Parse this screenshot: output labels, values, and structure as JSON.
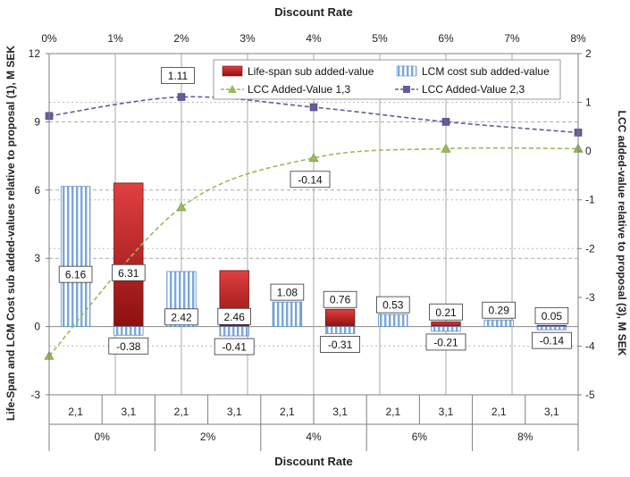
{
  "chart_data": {
    "type": "bar",
    "title": "",
    "top_axis_title": "Discount Rate",
    "bottom_axis_title": "Discount Rate",
    "ylabel_left": "Life-Span and LCM Cost  sub added-values relative to proposal (1), M SEK",
    "ylabel_right": "LCC added-value relative to proposal (3), M SEK",
    "ylim_left": [
      -3,
      12
    ],
    "yticks_left": [
      -3,
      0,
      3,
      6,
      9,
      12
    ],
    "ylim_right": [
      -5,
      2
    ],
    "yticks_right": [
      -5,
      -4,
      -3,
      -2,
      -1,
      0,
      1,
      2
    ],
    "top_axis_ticks": [
      "0%",
      "1%",
      "2%",
      "3%",
      "4%",
      "5%",
      "6%",
      "7%",
      "8%"
    ],
    "top_axis_range": [
      0,
      8
    ],
    "groups": [
      "0%",
      "2%",
      "4%",
      "6%",
      "8%"
    ],
    "subcategories": [
      "2,1",
      "3,1",
      "2,1",
      "3,1",
      "2,1",
      "3,1",
      "2,1",
      "3,1",
      "2,1",
      "3,1"
    ],
    "grid": true,
    "legend_position": "top-center",
    "bar_series": [
      {
        "name": "Life-span sub added-value",
        "color": "#cc2222",
        "slots": [
          1,
          3,
          5,
          7,
          9
        ],
        "values": [
          6.31,
          2.46,
          0.76,
          0.21,
          0.05
        ],
        "labels": [
          "6.31",
          "2.46",
          "0.76",
          "0.21",
          "0.05"
        ]
      },
      {
        "name": "LCM cost sub added-value",
        "color": "#6f9fd8",
        "slots": [
          0,
          2,
          4,
          6,
          8,
          1,
          3,
          5,
          7,
          9
        ],
        "values": [
          6.16,
          2.42,
          1.08,
          0.53,
          0.29,
          -0.38,
          -0.41,
          -0.31,
          -0.21,
          -0.14
        ],
        "labels": [
          "6.16",
          "2.42",
          "1.08",
          "0.53",
          "0.29",
          "-0.38",
          "-0.41",
          "-0.31",
          "-0.21",
          "-0.14"
        ]
      }
    ],
    "line_series": [
      {
        "name": "LCC Added-Value 1,3",
        "color": "#9bbb59",
        "marker": "triangle",
        "x": [
          0,
          2,
          4,
          6,
          8
        ],
        "y": [
          -4.2,
          -1.15,
          -0.14,
          0.05,
          0.05
        ],
        "point_labels": [
          "",
          "",
          "-0.14",
          "",
          ""
        ]
      },
      {
        "name": "LCC Added-Value 2,3",
        "color": "#6a5a9a",
        "marker": "square",
        "x": [
          0,
          2,
          4,
          6,
          8
        ],
        "y": [
          0.72,
          1.11,
          0.9,
          0.6,
          0.38
        ],
        "point_labels": [
          "",
          "1.11",
          "",
          "",
          ""
        ]
      }
    ]
  }
}
